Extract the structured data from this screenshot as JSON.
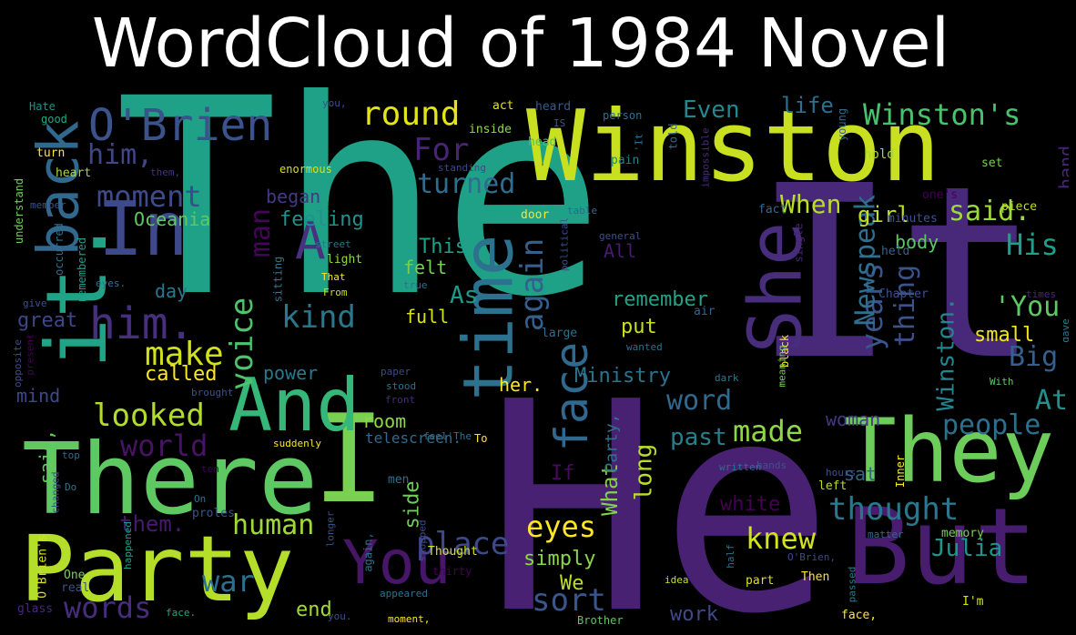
{
  "title": "WordCloud of 1984 Novel",
  "colors": {
    "background": "#000000",
    "title": "#ffffff",
    "palette": [
      "#440154",
      "#3b528b",
      "#21918c",
      "#5ec962",
      "#fde725"
    ]
  },
  "words": [
    {
      "text": "The",
      "color": "#1fa187"
    },
    {
      "text": "He",
      "color": "#482173"
    },
    {
      "text": "It",
      "color": "#482878"
    },
    {
      "text": "Winston",
      "color": "#c8e020"
    },
    {
      "text": "There",
      "color": "#5ec962"
    },
    {
      "text": "I",
      "color": "#7ad151"
    },
    {
      "text": "But",
      "color": "#481c6e"
    },
    {
      "text": "They",
      "color": "#6ccd5a"
    },
    {
      "text": "Party",
      "color": "#b5de2b"
    },
    {
      "text": "In",
      "color": "#3e4989"
    },
    {
      "text": "back",
      "color": "#31688e"
    },
    {
      "text": "it.",
      "color": "#20a386"
    },
    {
      "text": "And",
      "color": "#35b779"
    },
    {
      "text": "She",
      "color": "#472d7b"
    },
    {
      "text": "O'Brien",
      "color": "#3b528b"
    },
    {
      "text": "time",
      "color": "#2c728e"
    },
    {
      "text": "You",
      "color": "#481668"
    },
    {
      "text": "A",
      "color": "#46327e"
    },
    {
      "text": "him.",
      "color": "#46307e"
    },
    {
      "text": "face",
      "color": "#30688e"
    },
    {
      "text": "Winston's",
      "color": "#4ac16d"
    },
    {
      "text": "round",
      "color": "#e5e419"
    },
    {
      "text": "knew",
      "color": "#d2e21b"
    },
    {
      "text": "thought",
      "color": "#2a788e"
    },
    {
      "text": "people",
      "color": "#2d708e"
    },
    {
      "text": "said.",
      "color": "#9bd93c"
    },
    {
      "text": "His",
      "color": "#1f9e89"
    },
    {
      "text": "again",
      "color": "#355f8d"
    },
    {
      "text": "moment",
      "color": "#3e4a89"
    },
    {
      "text": "him,",
      "color": "#3f4788"
    },
    {
      "text": "kind",
      "color": "#2a788e"
    },
    {
      "text": "make",
      "color": "#d0e11c"
    },
    {
      "text": "looked",
      "color": "#b2dd2d"
    },
    {
      "text": "words",
      "color": "#472d7b"
    },
    {
      "text": "war",
      "color": "#2d708e"
    },
    {
      "text": "sort",
      "color": "#39558c"
    },
    {
      "text": "eyes",
      "color": "#fde725"
    },
    {
      "text": "place",
      "color": "#3e4989"
    },
    {
      "text": "human",
      "color": "#a0da39"
    },
    {
      "text": "made",
      "color": "#8fd744"
    },
    {
      "text": "word",
      "color": "#31688e"
    },
    {
      "text": "past",
      "color": "#277f8e"
    },
    {
      "text": "voice",
      "color": "#4ec36b"
    },
    {
      "text": "man",
      "color": "#450559"
    },
    {
      "text": "turned",
      "color": "#2f6c8e"
    },
    {
      "text": "For",
      "color": "#482475"
    },
    {
      "text": "Even",
      "color": "#24878e"
    },
    {
      "text": "life",
      "color": "#2d708e"
    },
    {
      "text": "years",
      "color": "#39568c"
    },
    {
      "text": "thing",
      "color": "#3b528b"
    },
    {
      "text": "Newspeak",
      "color": "#2e6e8e"
    },
    {
      "text": "'You",
      "color": "#5ec962"
    },
    {
      "text": "Big",
      "color": "#355f8d"
    },
    {
      "text": "At",
      "color": "#21918c"
    },
    {
      "text": "Winston.",
      "color": "#25858e"
    },
    {
      "text": "telescreen",
      "color": "#23898e"
    },
    {
      "text": "Julia",
      "color": "#1f968b"
    },
    {
      "text": "world",
      "color": "#471365"
    },
    {
      "text": "them.",
      "color": "#481a6c"
    },
    {
      "text": "simply",
      "color": "#8bd646"
    },
    {
      "text": "What",
      "color": "#7fd34e"
    },
    {
      "text": "long",
      "color": "#b8de29"
    },
    {
      "text": "When",
      "color": "#b8de29"
    },
    {
      "text": "girl",
      "color": "#c2df23"
    },
    {
      "text": "remember",
      "color": "#20a486"
    },
    {
      "text": "put",
      "color": "#c8e020"
    },
    {
      "text": "full",
      "color": "#d8e219"
    },
    {
      "text": "felt",
      "color": "#75d054"
    },
    {
      "text": "As",
      "color": "#1f9a8a"
    },
    {
      "text": "This",
      "color": "#1fa088"
    },
    {
      "text": "feeling",
      "color": "#21918c"
    },
    {
      "text": "Oceania",
      "color": "#5ec962"
    },
    {
      "text": "began",
      "color": "#443983"
    },
    {
      "text": "called",
      "color": "#fde725"
    },
    {
      "text": "great",
      "color": "#3f4788"
    },
    {
      "text": "power",
      "color": "#2a788e"
    },
    {
      "text": "day",
      "color": "#2a788e"
    },
    {
      "text": "mind",
      "color": "#3f4889"
    },
    {
      "text": "Ministry",
      "color": "#2c738e"
    },
    {
      "text": "her.",
      "color": "#fde725"
    },
    {
      "text": "room",
      "color": "#8fd744"
    },
    {
      "text": "small",
      "color": "#f1e51d"
    },
    {
      "text": "body",
      "color": "#5ec962"
    },
    {
      "text": "white",
      "color": "#440154"
    },
    {
      "text": "sat",
      "color": "#33638d"
    },
    {
      "text": "woman",
      "color": "#453882"
    },
    {
      "text": "side",
      "color": "#6ece58"
    },
    {
      "text": "said,",
      "color": "#62cb5f"
    },
    {
      "text": "end",
      "color": "#a2da37"
    },
    {
      "text": "work",
      "color": "#3e4a89"
    },
    {
      "text": "hand",
      "color": "#482576"
    },
    {
      "text": "Party,",
      "color": "#2b748e"
    },
    {
      "text": "If",
      "color": "#460b5e"
    },
    {
      "text": "All",
      "color": "#481b6d"
    },
    {
      "text": "We",
      "color": "#bade28"
    },
    {
      "text": "telescreen.",
      "color": "#2f6b8e"
    },
    {
      "text": "O'Brien's",
      "color": "#d5e21a"
    },
    {
      "text": "Chapter",
      "color": "#3b528b"
    },
    {
      "text": "minutes",
      "color": "#3a548c"
    },
    {
      "text": "piece",
      "color": "#bddf26"
    },
    {
      "text": "fact",
      "color": "#31688e"
    },
    {
      "text": "hold",
      "color": "#a0da39"
    },
    {
      "text": "set",
      "color": "#7ad151"
    },
    {
      "text": "held",
      "color": "#33638d"
    },
    {
      "text": "single",
      "color": "#482677"
    },
    {
      "text": "general",
      "color": "#3b518b"
    },
    {
      "text": "impossible",
      "color": "#472c7a"
    },
    {
      "text": "young",
      "color": "#31688e"
    },
    {
      "text": "one's",
      "color": "#440154"
    },
    {
      "text": "told",
      "color": "#2e6d8e"
    },
    {
      "text": "pain",
      "color": "#25838e"
    },
    {
      "text": "head",
      "color": "#4ac16d"
    },
    {
      "text": "heard",
      "color": "#38598c"
    },
    {
      "text": "person",
      "color": "#2d708e"
    },
    {
      "text": "inside",
      "color": "#8fd744"
    },
    {
      "text": "act",
      "color": "#e5e419"
    },
    {
      "text": "'It",
      "color": "#2c718e"
    },
    {
      "text": "IS",
      "color": "#39568c"
    },
    {
      "text": "standing",
      "color": "#3e4a89"
    },
    {
      "text": "Hate",
      "color": "#21918c"
    },
    {
      "text": "you,",
      "color": "#3b528b"
    },
    {
      "text": "good",
      "color": "#22a884"
    },
    {
      "text": "turn",
      "color": "#fde725"
    },
    {
      "text": "heart",
      "color": "#a5db36"
    },
    {
      "text": "them,",
      "color": "#46337f"
    },
    {
      "text": "enormous",
      "color": "#d8e219"
    },
    {
      "text": "member",
      "color": "#3b528b"
    },
    {
      "text": "understand",
      "color": "#6ece58"
    },
    {
      "text": "occurred",
      "color": "#2d708e"
    },
    {
      "text": "remembered",
      "color": "#1f9e89"
    },
    {
      "text": "street",
      "color": "#2c728e"
    },
    {
      "text": "light",
      "color": "#8fd744"
    },
    {
      "text": "sitting",
      "color": "#2a788e"
    },
    {
      "text": "That",
      "color": "#fde725"
    },
    {
      "text": "From",
      "color": "#c8e020"
    },
    {
      "text": "true",
      "color": "#2d708e"
    },
    {
      "text": "eyes.",
      "color": "#2d708e"
    },
    {
      "text": "give",
      "color": "#3b528b"
    },
    {
      "text": "present",
      "color": "#440154"
    },
    {
      "text": "opposite",
      "color": "#3e4a89"
    },
    {
      "text": "brought",
      "color": "#3b528b"
    },
    {
      "text": "paper",
      "color": "#3e4989"
    },
    {
      "text": "stood",
      "color": "#2c728e"
    },
    {
      "text": "front",
      "color": "#482878"
    },
    {
      "text": "door",
      "color": "#fde725"
    },
    {
      "text": "table",
      "color": "#31688e"
    },
    {
      "text": "political",
      "color": "#3b528b"
    },
    {
      "text": "large",
      "color": "#2c728e"
    },
    {
      "text": "wanted",
      "color": "#2d708e"
    },
    {
      "text": "air",
      "color": "#31688e"
    },
    {
      "text": "black",
      "color": "#fde725"
    },
    {
      "text": "dark",
      "color": "#2a788e"
    },
    {
      "text": "meaning",
      "color": "#7ad151"
    },
    {
      "text": "With",
      "color": "#5ec962"
    },
    {
      "text": "times",
      "color": "#482878"
    },
    {
      "text": "gave",
      "color": "#2a788e"
    },
    {
      "text": "written",
      "color": "#2d708e"
    },
    {
      "text": "hours",
      "color": "#3b528b"
    },
    {
      "text": "left",
      "color": "#b5de2b"
    },
    {
      "text": "Inner",
      "color": "#fde725"
    },
    {
      "text": "matter",
      "color": "#31688e"
    },
    {
      "text": "memory",
      "color": "#7ad151"
    },
    {
      "text": "O'Brien,",
      "color": "#3e4989"
    },
    {
      "text": "Then",
      "color": "#fde725"
    },
    {
      "text": "half",
      "color": "#2c728e"
    },
    {
      "text": "part",
      "color": "#d8e219"
    },
    {
      "text": "passed",
      "color": "#2a788e"
    },
    {
      "text": "face,",
      "color": "#fde725"
    },
    {
      "text": "I'm",
      "color": "#d8e219"
    },
    {
      "text": "idea",
      "color": "#c8e020"
    },
    {
      "text": "Brother",
      "color": "#5ec962"
    },
    {
      "text": "moment,",
      "color": "#fde725"
    },
    {
      "text": "you.",
      "color": "#3b528b"
    },
    {
      "text": "face.",
      "color": "#22a884"
    },
    {
      "text": "again,",
      "color": "#2c728e"
    },
    {
      "text": "thirty",
      "color": "#440154"
    },
    {
      "text": "Thought",
      "color": "#d8e219"
    },
    {
      "text": "appeared",
      "color": "#2d708e"
    },
    {
      "text": "longer",
      "color": "#3b528b"
    },
    {
      "text": "stopped",
      "color": "#3e4989"
    },
    {
      "text": "feel'The",
      "color": "#2c728e"
    },
    {
      "text": "To",
      "color": "#fde725"
    },
    {
      "text": "hands",
      "color": "#3b528b"
    },
    {
      "text": "suddenly",
      "color": "#fde725"
    },
    {
      "text": "ten",
      "color": "#440154"
    },
    {
      "text": "top",
      "color": "#31688e"
    },
    {
      "text": "Do",
      "color": "#2c728e"
    },
    {
      "text": "changed",
      "color": "#3b528b"
    },
    {
      "text": "On",
      "color": "#2c728e"
    },
    {
      "text": "proles",
      "color": "#3b528b"
    },
    {
      "text": "men",
      "color": "#2d708e"
    },
    {
      "text": "happened",
      "color": "#1f9e89"
    },
    {
      "text": "One",
      "color": "#7ad151"
    },
    {
      "text": "real",
      "color": "#3b528b"
    },
    {
      "text": "glass",
      "color": "#482878"
    }
  ]
}
